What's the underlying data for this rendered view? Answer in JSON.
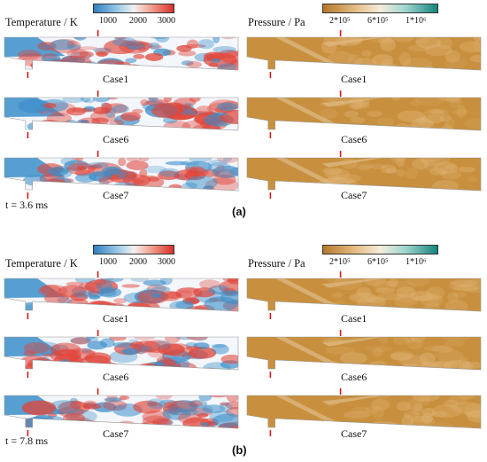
{
  "colors": {
    "temp_low": "#3b8ec9",
    "temp_mid": "#f3f6fa",
    "temp_high": "#e0453a",
    "pressure_low": "#c8903e",
    "pressure_mid": "#f3ead8",
    "pressure_high": "#1c8a83",
    "marker": "#d11a1a"
  },
  "panels": [
    {
      "letter": "(a)",
      "time": "t = 3.6 ms",
      "temperature": {
        "title": "Temperature / K",
        "ticks": [
          "1000",
          "2000",
          "3000"
        ]
      },
      "pressure": {
        "title": "Pressure / Pa",
        "ticks": [
          "2*10⁵",
          "6*10⁵",
          "1*10⁶"
        ]
      },
      "cases": [
        "Case1",
        "Case6",
        "Case7"
      ]
    },
    {
      "letter": "(b)",
      "time": "t = 7.8 ms",
      "temperature": {
        "title": "Temperature / K",
        "ticks": [
          "1000",
          "2000",
          "3000"
        ]
      },
      "pressure": {
        "title": "Pressure / Pa",
        "ticks": [
          "2*10⁵",
          "6*10⁵",
          "1*10⁶"
        ]
      },
      "cases": [
        "Case1",
        "Case6",
        "Case7"
      ]
    }
  ]
}
